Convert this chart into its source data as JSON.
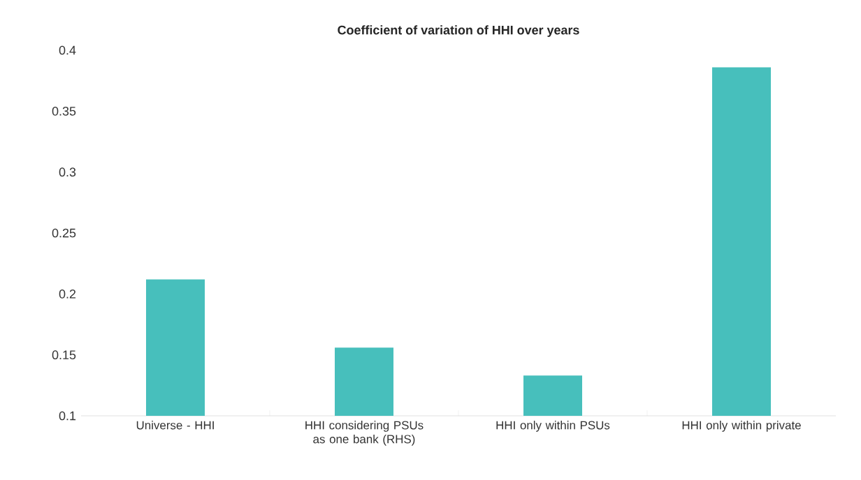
{
  "chart_data": {
    "type": "bar",
    "title": "Coefficient of variation of HHI over years",
    "categories": [
      "Universe - HHI",
      "HHI considering PSUs as one bank (RHS)",
      "HHI only within PSUs",
      "HHI only within private"
    ],
    "values": [
      0.212,
      0.156,
      0.133,
      0.386
    ],
    "color": "#47bfbc",
    "ylim": [
      0.1,
      0.4
    ],
    "yticks": [
      0.1,
      0.15,
      0.2,
      0.25,
      0.3,
      0.35,
      0.4
    ]
  }
}
